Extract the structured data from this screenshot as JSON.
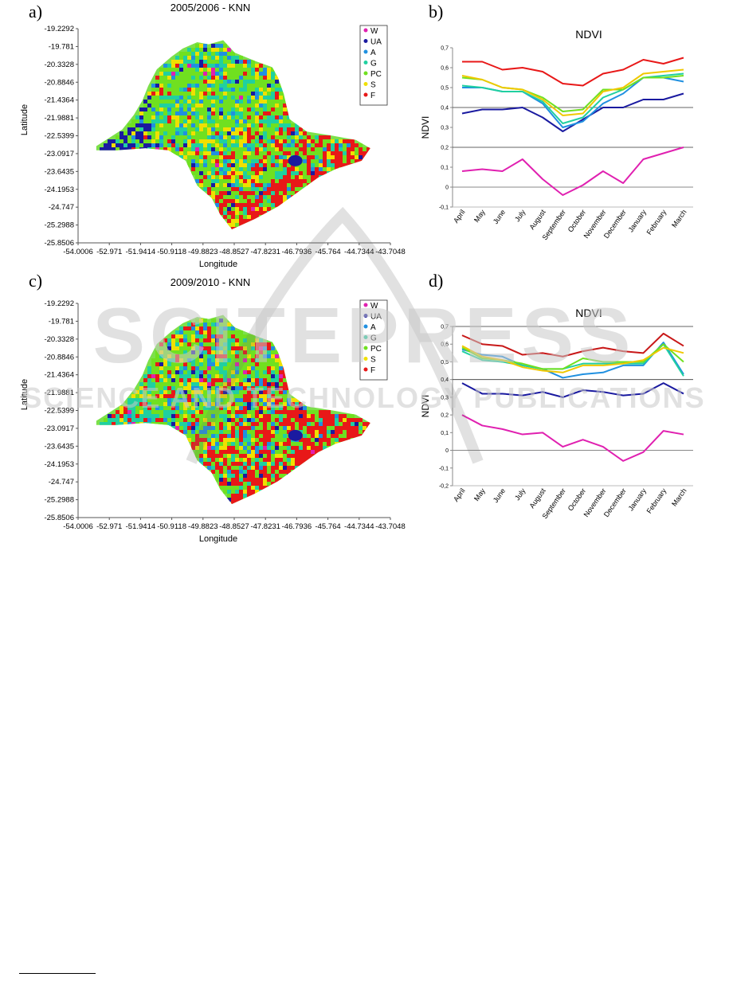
{
  "panels": {
    "a": "a)",
    "b": "b)",
    "c": "c)",
    "d": "d)"
  },
  "watermark": {
    "main": "SCITEPRESS",
    "sub": "SCIENCE AND TECHNOLOGY PUBLICATIONS"
  },
  "classes": [
    {
      "code": "W",
      "color": "#e020b0"
    },
    {
      "code": "UA",
      "color": "#1a1aa0"
    },
    {
      "code": "A",
      "color": "#2090e0"
    },
    {
      "code": "G",
      "color": "#20d0a0"
    },
    {
      "code": "PC",
      "color": "#70e020"
    },
    {
      "code": "S",
      "color": "#f0e000"
    },
    {
      "code": "F",
      "color": "#e81818"
    }
  ],
  "maps": [
    {
      "title": "2005/2006 - KNN",
      "xlabel": "Longitude",
      "ylabel": "Latitude",
      "y_ticks": [
        "-19.2292",
        "-19.781",
        "-20.3328",
        "-20.8846",
        "-21.4364",
        "-21.9881",
        "-22.5399",
        "-23.0917",
        "-23.6435",
        "-24.1953",
        "-24.747",
        "-25.2988",
        "-25.8506"
      ],
      "x_ticks": [
        "-54.0006",
        "-52.971",
        "-51.9414",
        "-50.9118",
        "-49.8823",
        "-48.8527",
        "-47.8231",
        "-46.7936",
        "-45.764",
        "-44.7344",
        "-43.7048"
      ]
    },
    {
      "title": "2009/2010 - KNN",
      "xlabel": "Longitude",
      "ylabel": "Latitude",
      "y_ticks": [
        "-19.2292",
        "-19.781",
        "-20.3328",
        "-20.8846",
        "-21.4364",
        "-21.9881",
        "-22.5399",
        "-23.0917",
        "-23.6435",
        "-24.1953",
        "-24.747",
        "-25.2988",
        "-25.8506"
      ],
      "x_ticks": [
        "-54.0006",
        "-52.971",
        "-51.9414",
        "-50.9118",
        "-49.8823",
        "-48.8527",
        "-47.8231",
        "-46.7936",
        "-45.764",
        "-44.7344",
        "-43.7048"
      ]
    }
  ],
  "chart_data": [
    {
      "type": "line",
      "title": "NDVI",
      "ylabel": "NDVI",
      "xlabel": "",
      "ylim": [
        -0.1,
        0.7
      ],
      "y_ticks": [
        "-0,1",
        "0",
        "0,1",
        "0,2",
        "0,3",
        "0,4",
        "0,5",
        "0,6",
        "0,7"
      ],
      "grid_y": [
        0.2,
        0.4
      ],
      "categories": [
        "April",
        "May",
        "June",
        "July",
        "August",
        "September",
        "October",
        "November",
        "December",
        "January",
        "February",
        "March"
      ],
      "series": [
        {
          "name": "W",
          "color": "#e020b0",
          "values": [
            0.08,
            0.09,
            0.08,
            0.14,
            0.04,
            -0.04,
            0.01,
            0.08,
            0.02,
            0.14,
            0.17,
            0.2
          ]
        },
        {
          "name": "UA",
          "color": "#1a1aa0",
          "values": [
            0.37,
            0.39,
            0.39,
            0.4,
            0.35,
            0.28,
            0.34,
            0.4,
            0.4,
            0.44,
            0.44,
            0.47
          ]
        },
        {
          "name": "A",
          "color": "#2090e0",
          "values": [
            0.5,
            0.5,
            0.48,
            0.48,
            0.42,
            0.3,
            0.33,
            0.42,
            0.47,
            0.55,
            0.55,
            0.53
          ]
        },
        {
          "name": "G",
          "color": "#20d0a0",
          "values": [
            0.51,
            0.5,
            0.48,
            0.48,
            0.43,
            0.32,
            0.35,
            0.45,
            0.49,
            0.55,
            0.56,
            0.57
          ]
        },
        {
          "name": "PC",
          "color": "#70e020",
          "values": [
            0.55,
            0.54,
            0.5,
            0.49,
            0.45,
            0.38,
            0.39,
            0.49,
            0.49,
            0.55,
            0.55,
            0.56
          ]
        },
        {
          "name": "S",
          "color": "#f0c800",
          "values": [
            0.56,
            0.54,
            0.5,
            0.49,
            0.44,
            0.36,
            0.37,
            0.48,
            0.5,
            0.57,
            0.58,
            0.59
          ]
        },
        {
          "name": "F",
          "color": "#e81818",
          "values": [
            0.63,
            0.63,
            0.59,
            0.6,
            0.58,
            0.52,
            0.51,
            0.57,
            0.59,
            0.64,
            0.62,
            0.65
          ]
        }
      ]
    },
    {
      "type": "line",
      "title": "NDVI",
      "ylabel": "NDVI",
      "xlabel": "",
      "ylim": [
        -0.2,
        0.7
      ],
      "y_ticks": [
        "-0,2",
        "-0,1",
        "0",
        "0,1",
        "0,2",
        "0,3",
        "0,4",
        "0,5",
        "0,6",
        "0,7"
      ],
      "grid_y": [
        0.4,
        0.7
      ],
      "categories": [
        "April",
        "May",
        "June",
        "July",
        "August",
        "September",
        "October",
        "November",
        "December",
        "January",
        "February",
        "March"
      ],
      "series": [
        {
          "name": "W",
          "color": "#e020b0",
          "values": [
            0.2,
            0.14,
            0.12,
            0.09,
            0.1,
            0.02,
            0.06,
            0.02,
            -0.06,
            -0.01,
            0.11,
            0.09
          ]
        },
        {
          "name": "UA",
          "color": "#1a1aa0",
          "values": [
            0.38,
            0.32,
            0.32,
            0.31,
            0.33,
            0.3,
            0.34,
            0.33,
            0.31,
            0.32,
            0.38,
            0.32
          ]
        },
        {
          "name": "A",
          "color": "#2090e0",
          "values": [
            0.57,
            0.54,
            0.53,
            0.48,
            0.46,
            0.41,
            0.43,
            0.44,
            0.48,
            0.48,
            0.61,
            0.43
          ]
        },
        {
          "name": "G",
          "color": "#20d0a0",
          "values": [
            0.56,
            0.51,
            0.5,
            0.48,
            0.46,
            0.46,
            0.49,
            0.49,
            0.49,
            0.49,
            0.6,
            0.42
          ]
        },
        {
          "name": "PC",
          "color": "#70e020",
          "values": [
            0.58,
            0.52,
            0.51,
            0.49,
            0.46,
            0.46,
            0.52,
            0.5,
            0.5,
            0.5,
            0.6,
            0.5
          ]
        },
        {
          "name": "S",
          "color": "#f0c800",
          "values": [
            0.59,
            0.53,
            0.51,
            0.47,
            0.45,
            0.44,
            0.48,
            0.48,
            0.49,
            0.51,
            0.58,
            0.55
          ]
        },
        {
          "name": "F",
          "color": "#c81818",
          "values": [
            0.65,
            0.6,
            0.59,
            0.54,
            0.55,
            0.53,
            0.56,
            0.58,
            0.56,
            0.55,
            0.66,
            0.59
          ]
        }
      ]
    }
  ]
}
